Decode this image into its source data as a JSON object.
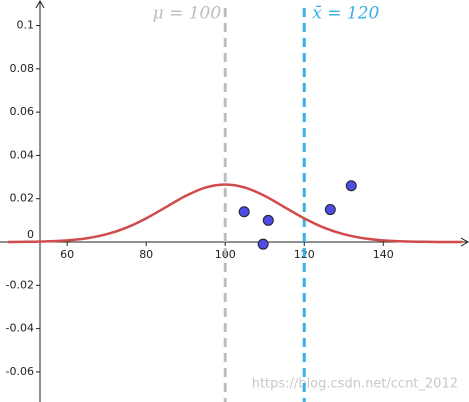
{
  "chart_data": {
    "type": "line",
    "x": [
      45,
      50,
      55,
      60,
      65,
      70,
      75,
      80,
      85,
      90,
      95,
      100,
      105,
      110,
      115,
      120,
      125,
      130,
      135,
      140,
      145,
      150,
      155,
      160
    ],
    "series": [
      {
        "color": "#d24b4b",
        "values": [
          3e-05,
          0.0001,
          0.0003,
          0.00076,
          0.00175,
          0.0036,
          0.00663,
          0.01093,
          0.0161,
          0.0213,
          0.02516,
          0.0266,
          0.02516,
          0.0213,
          0.0161,
          0.01093,
          0.00663,
          0.0036,
          0.00175,
          0.00076,
          0.0003,
          0.0001,
          3e-05,
          1e-05
        ]
      }
    ],
    "points": {
      "color": "#4d4de6",
      "x": [
        104.8,
        110.9,
        109.6,
        126.6,
        131.9
      ],
      "y": [
        0.014,
        0.01,
        -0.001,
        0.015,
        0.026
      ]
    },
    "vlines": [
      {
        "x": 100,
        "label": "μ = 100",
        "color": "#bdbdbd"
      },
      {
        "x": 120,
        "label": "x̄ = 120",
        "color": "#3aafe6"
      }
    ],
    "xlim": [
      43,
      161.7
    ],
    "ylim": [
      -0.0739,
      0.1118
    ],
    "xticks": [
      60,
      80,
      100,
      120,
      140
    ],
    "yticks": [
      -0.06,
      -0.04,
      -0.02,
      0,
      0.02,
      0.04,
      0.06,
      0.08,
      0.1
    ],
    "grid": false,
    "watermark": "https://blog.csdn.net/ccnt_2012"
  }
}
